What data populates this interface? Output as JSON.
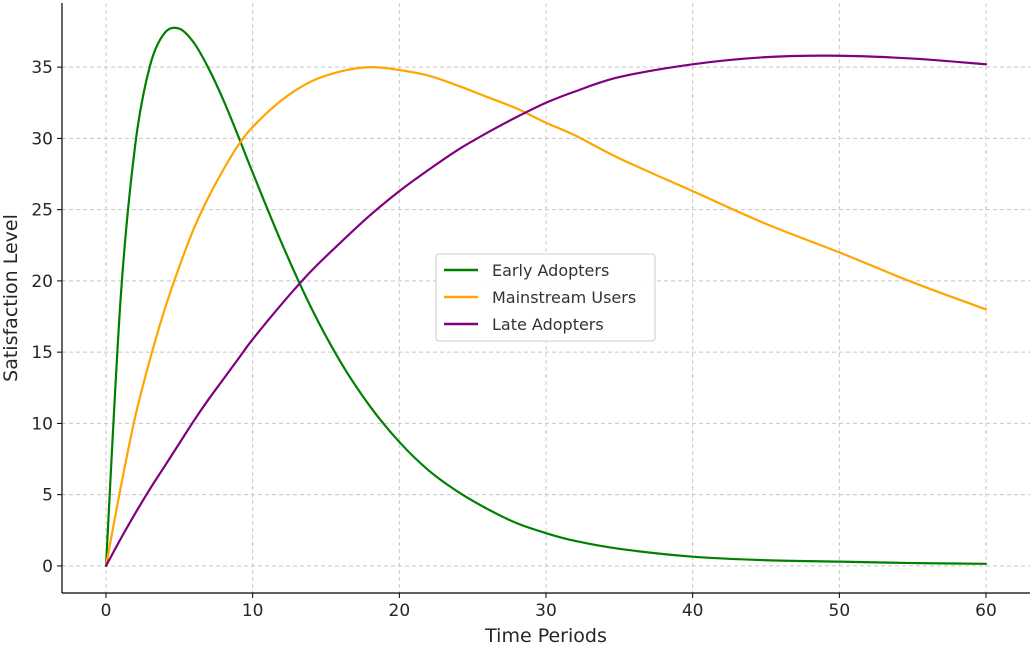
{
  "chart_data": {
    "type": "line",
    "title": "",
    "xlabel": "Time Periods",
    "ylabel": "Satisfaction Level",
    "xlim": [
      -3,
      63
    ],
    "ylim": [
      -1.9,
      39.5
    ],
    "xticks": [
      0,
      10,
      20,
      30,
      40,
      50,
      60
    ],
    "yticks": [
      0,
      5,
      10,
      15,
      20,
      25,
      30,
      35
    ],
    "grid": true,
    "legend_position": "center-right",
    "x": [
      0,
      1,
      2,
      3,
      4,
      5,
      6,
      7,
      8,
      9,
      10,
      12,
      14,
      16,
      18,
      20,
      22,
      24,
      26,
      28,
      30,
      32,
      35,
      40,
      45,
      50,
      55,
      60
    ],
    "series": [
      {
        "name": "Early Adopters",
        "color": "#008000",
        "values": [
          0,
          18.8,
          29.6,
          35.1,
          37.4,
          37.7,
          36.7,
          34.9,
          32.7,
          30.2,
          27.6,
          22.6,
          18.1,
          14.3,
          11.2,
          8.7,
          6.7,
          5.2,
          4.0,
          3.0,
          2.3,
          1.75,
          1.2,
          0.65,
          0.4,
          0.3,
          0.2,
          0.15
        ]
      },
      {
        "name": "Mainstream Users",
        "color": "#FFA500",
        "values": [
          0,
          5.5,
          10.5,
          14.5,
          18.0,
          21.0,
          23.7,
          25.9,
          27.8,
          29.5,
          30.8,
          32.7,
          34.0,
          34.7,
          35.0,
          34.8,
          34.4,
          33.7,
          32.9,
          32.1,
          31.1,
          30.2,
          28.6,
          26.3,
          24.0,
          22.0,
          19.9,
          18.0
        ]
      },
      {
        "name": "Late Adopters",
        "color": "#800080",
        "values": [
          0,
          1.9,
          3.7,
          5.4,
          7.0,
          8.6,
          10.2,
          11.7,
          13.1,
          14.5,
          15.9,
          18.4,
          20.7,
          22.7,
          24.6,
          26.3,
          27.8,
          29.2,
          30.4,
          31.5,
          32.5,
          33.3,
          34.3,
          35.2,
          35.7,
          35.8,
          35.6,
          35.2
        ]
      }
    ]
  }
}
